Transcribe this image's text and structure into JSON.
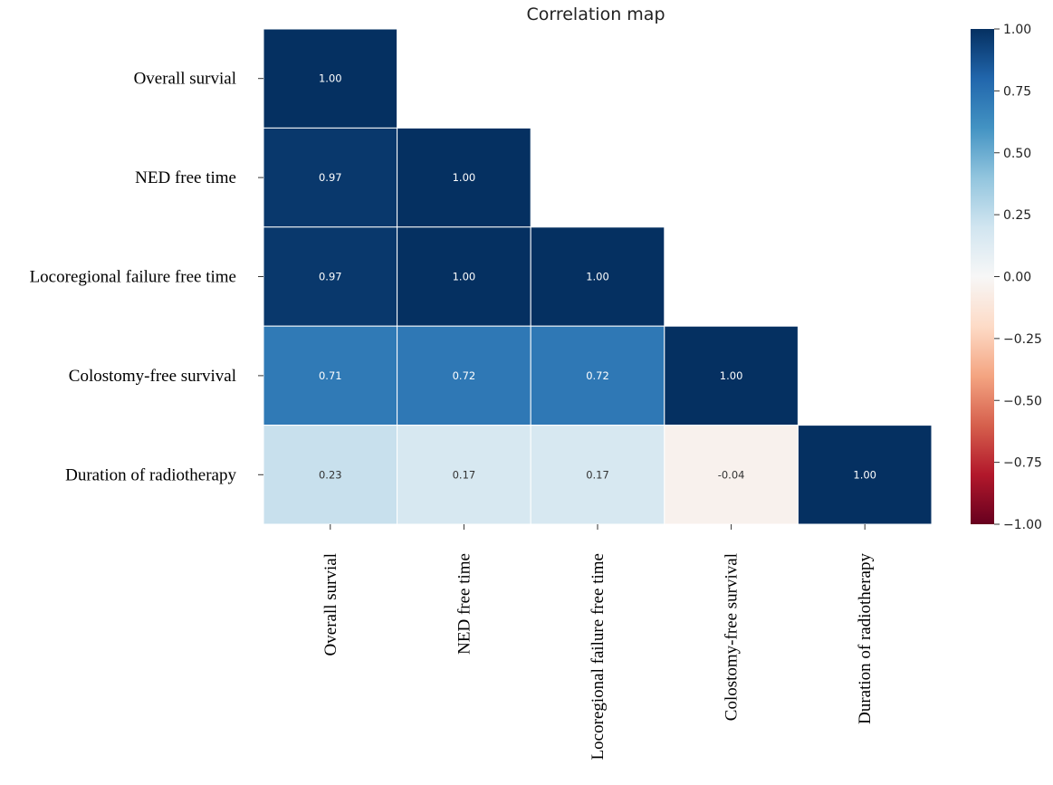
{
  "chart_data": {
    "type": "heatmap",
    "title": "Correlation map",
    "mask": "upper-triangle",
    "rows": [
      "Overall survial",
      "NED free time",
      "Locoregional failure free time",
      "Colostomy-free survival",
      "Duration of radiotherapy"
    ],
    "columns": [
      "Overall survial",
      "NED free time",
      "Locoregional failure free time",
      "Colostomy-free survival",
      "Duration of radiotherapy"
    ],
    "values": [
      [
        1.0,
        null,
        null,
        null,
        null
      ],
      [
        0.97,
        1.0,
        null,
        null,
        null
      ],
      [
        0.97,
        1.0,
        1.0,
        null,
        null
      ],
      [
        0.71,
        0.72,
        0.72,
        1.0,
        null
      ],
      [
        0.23,
        0.17,
        0.17,
        -0.04,
        1.0
      ]
    ],
    "value_labels": [
      [
        "1.00",
        null,
        null,
        null,
        null
      ],
      [
        "0.97",
        "1.00",
        null,
        null,
        null
      ],
      [
        "0.97",
        "1.00",
        "1.00",
        null,
        null
      ],
      [
        "0.71",
        "0.72",
        "0.72",
        "1.00",
        null
      ],
      [
        "0.23",
        "0.17",
        "0.17",
        "-0.04",
        "1.00"
      ]
    ],
    "colorbar": {
      "range": [
        -1.0,
        1.0
      ],
      "ticks": [
        1.0,
        0.75,
        0.5,
        0.25,
        0.0,
        -0.25,
        -0.5,
        -0.75,
        -1.0
      ],
      "tick_labels": [
        "1.00",
        "0.75",
        "0.50",
        "0.25",
        "0.00",
        "−0.25",
        "−0.50",
        "−0.75",
        "−1.00"
      ],
      "colormap": "RdBu",
      "stops": [
        "#67001f",
        "#b2182b",
        "#d6604d",
        "#f4a582",
        "#fddbc7",
        "#f7f7f7",
        "#d1e5f0",
        "#92c5de",
        "#4393c3",
        "#2166ac",
        "#053061"
      ]
    },
    "grid": false,
    "cell_border_color": "#ffffff"
  }
}
